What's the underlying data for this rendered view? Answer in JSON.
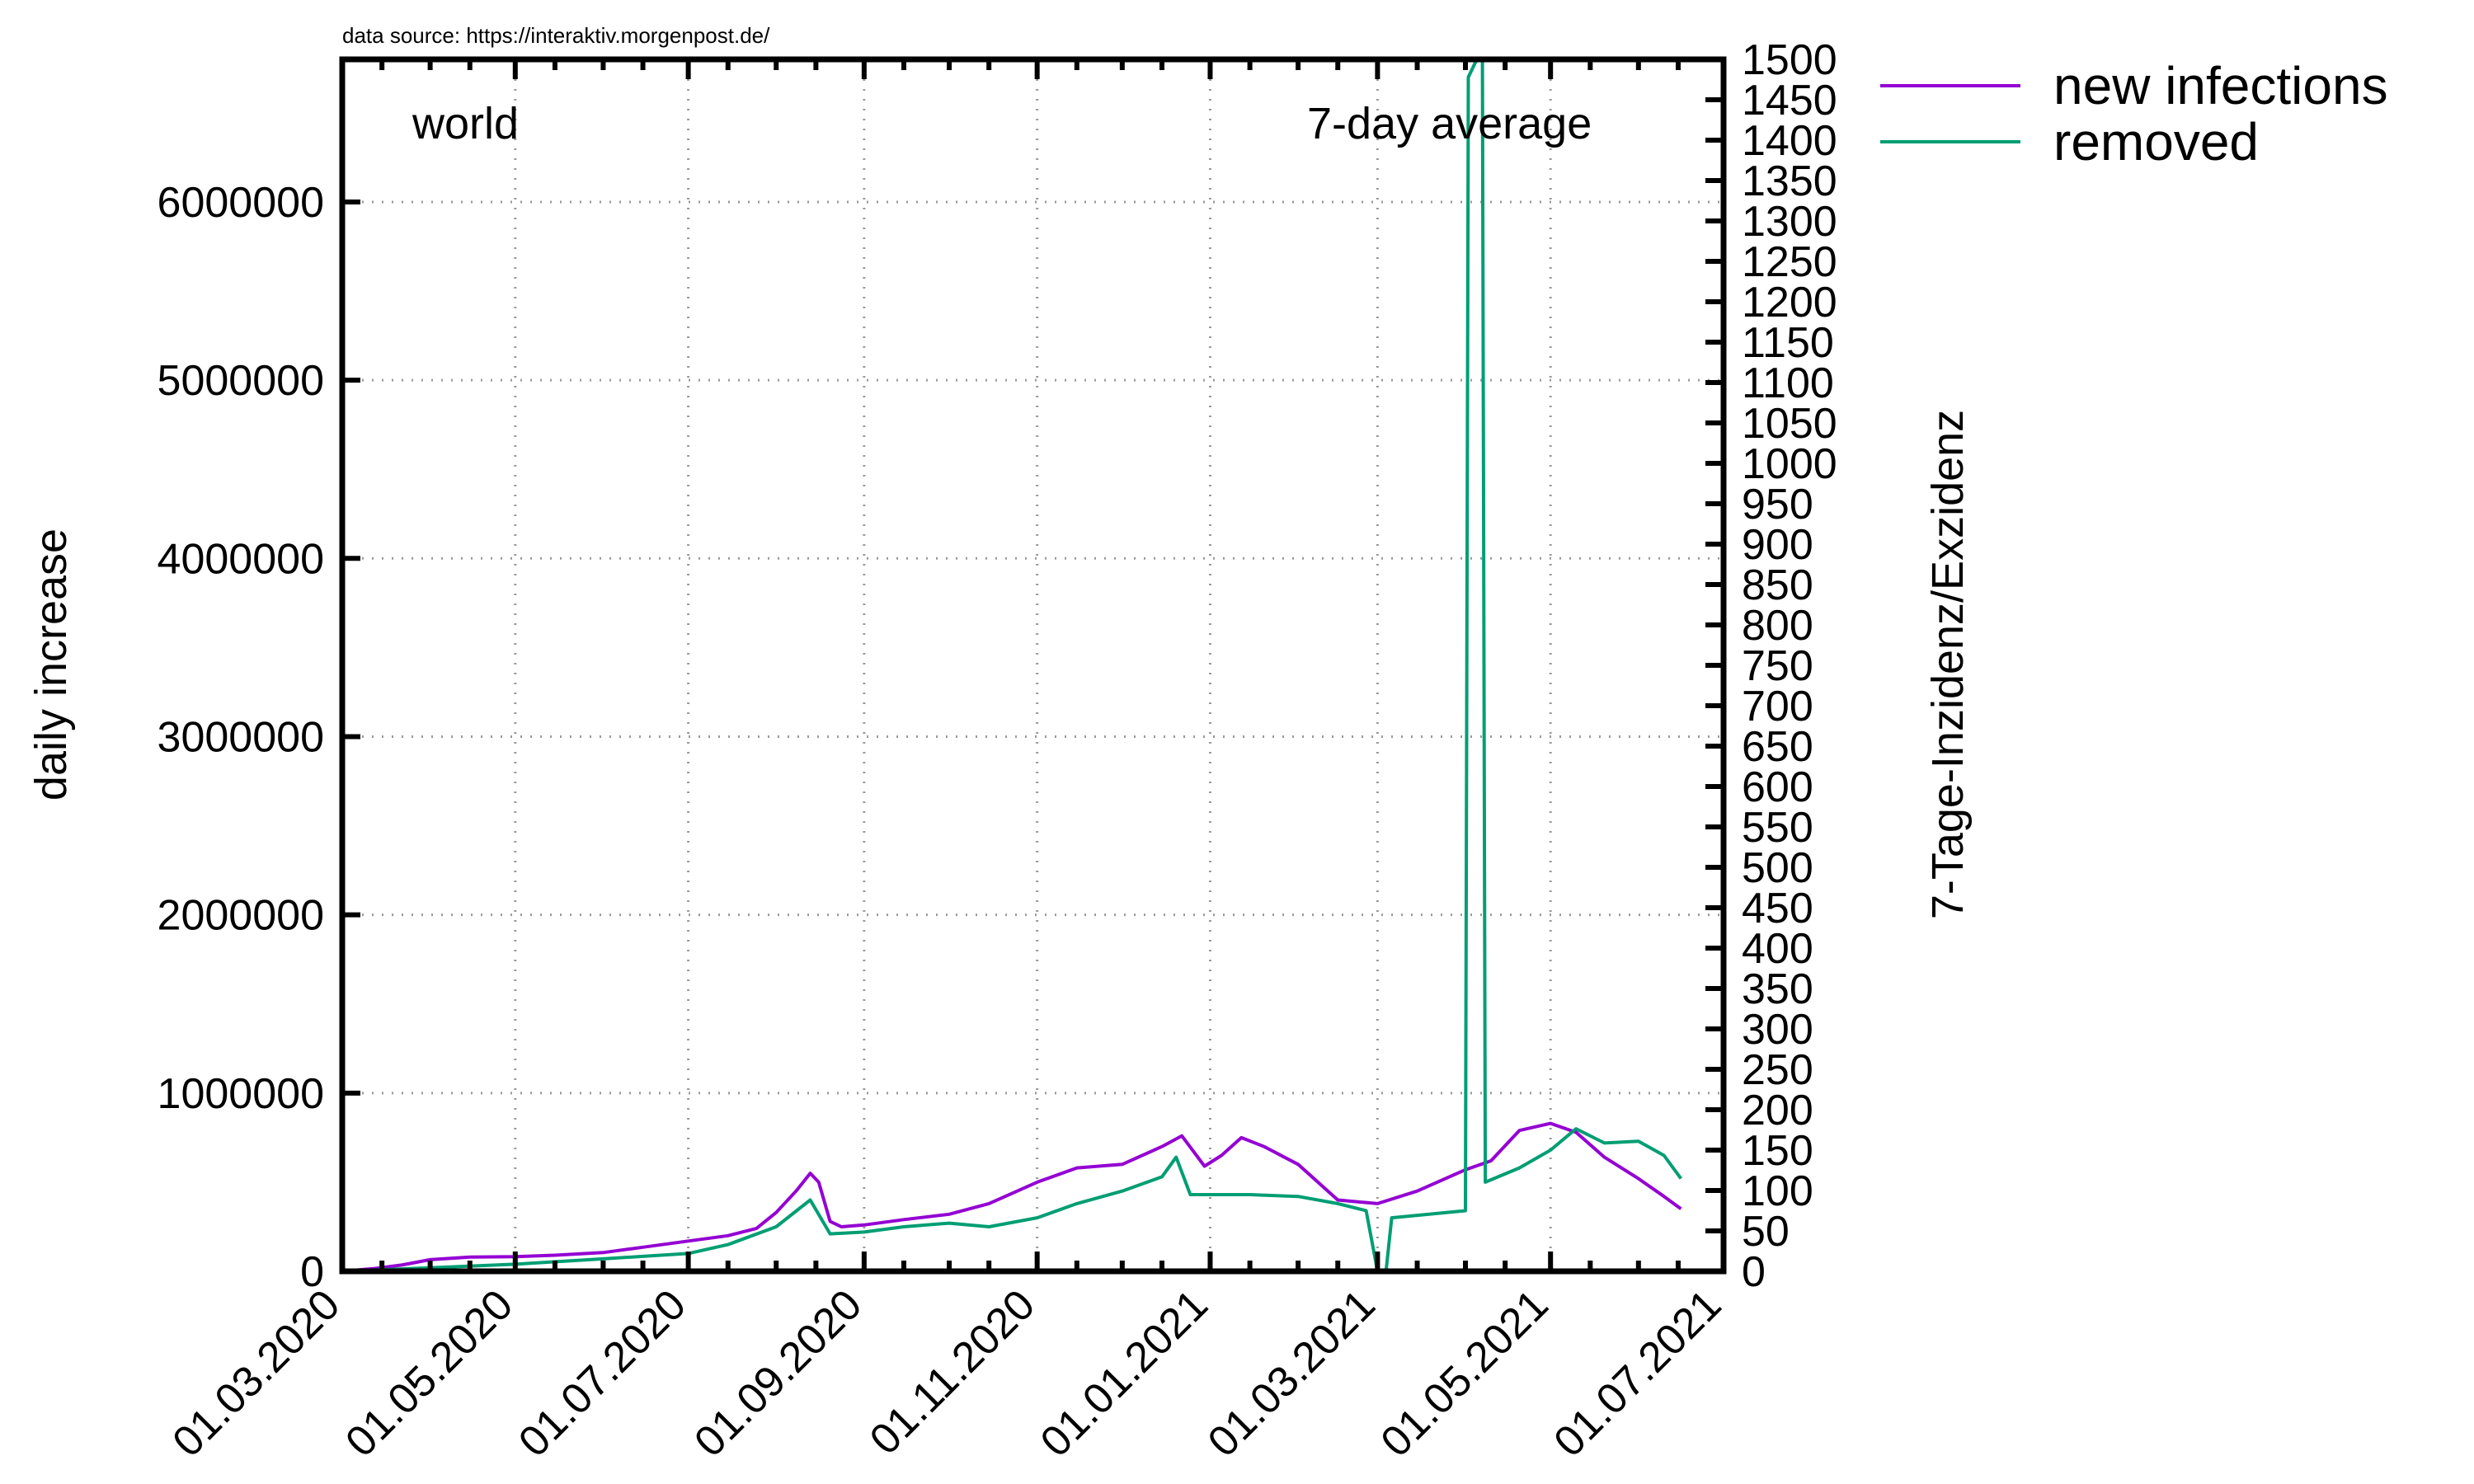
{
  "source_note": "data source: https://interaktiv.morgenpost.de/",
  "chart_data": {
    "type": "line",
    "title": "world",
    "subtitle": "7-day average",
    "ylabel": "daily increase",
    "y2label": "7-Tage-Inzidenz/Exzidenz",
    "x_tick_labels": [
      "01.03.2020",
      "01.05.2020",
      "01.07.2020",
      "01.09.2020",
      "01.11.2020",
      "01.01.2021",
      "01.03.2021",
      "01.05.2021",
      "01.07.2021"
    ],
    "xlim": [
      "2020-03-01",
      "2021-07-01"
    ],
    "ylim": [
      0,
      6800000
    ],
    "y_ticks": [
      0,
      1000000,
      2000000,
      3000000,
      4000000,
      5000000,
      6000000
    ],
    "y_tick_labels": [
      "0",
      "1000000",
      "2000000",
      "3000000",
      "4000000",
      "5000000",
      "6000000"
    ],
    "y2lim": [
      0,
      1500
    ],
    "y2_ticks": [
      0,
      50,
      100,
      150,
      200,
      250,
      300,
      350,
      400,
      450,
      500,
      550,
      600,
      650,
      700,
      750,
      800,
      850,
      900,
      950,
      1000,
      1050,
      1100,
      1150,
      1200,
      1250,
      1300,
      1350,
      1400,
      1450,
      1500
    ],
    "grid": true,
    "legend_position": "outside top-right",
    "series": [
      {
        "name": "new infections",
        "color": "#9400d3",
        "points": [
          [
            "2020-03-01",
            0
          ],
          [
            "2020-03-12",
            15000
          ],
          [
            "2020-03-22",
            35000
          ],
          [
            "2020-04-01",
            65000
          ],
          [
            "2020-04-15",
            80000
          ],
          [
            "2020-05-01",
            82000
          ],
          [
            "2020-05-15",
            90000
          ],
          [
            "2020-06-01",
            105000
          ],
          [
            "2020-06-15",
            135000
          ],
          [
            "2020-07-01",
            170000
          ],
          [
            "2020-07-15",
            200000
          ],
          [
            "2020-07-25",
            240000
          ],
          [
            "2020-08-01",
            330000
          ],
          [
            "2020-08-08",
            450000
          ],
          [
            "2020-08-13",
            550000
          ],
          [
            "2020-08-16",
            500000
          ],
          [
            "2020-08-20",
            280000
          ],
          [
            "2020-08-24",
            250000
          ],
          [
            "2020-09-01",
            260000
          ],
          [
            "2020-09-15",
            290000
          ],
          [
            "2020-10-01",
            320000
          ],
          [
            "2020-10-15",
            380000
          ],
          [
            "2020-11-01",
            500000
          ],
          [
            "2020-11-15",
            580000
          ],
          [
            "2020-12-01",
            600000
          ],
          [
            "2020-12-15",
            700000
          ],
          [
            "2020-12-22",
            760000
          ],
          [
            "2020-12-30",
            590000
          ],
          [
            "2021-01-05",
            650000
          ],
          [
            "2021-01-12",
            750000
          ],
          [
            "2021-01-20",
            700000
          ],
          [
            "2021-02-01",
            600000
          ],
          [
            "2021-02-15",
            400000
          ],
          [
            "2021-03-01",
            380000
          ],
          [
            "2021-03-15",
            450000
          ],
          [
            "2021-04-01",
            570000
          ],
          [
            "2021-04-10",
            620000
          ],
          [
            "2021-04-20",
            790000
          ],
          [
            "2021-05-01",
            830000
          ],
          [
            "2021-05-10",
            780000
          ],
          [
            "2021-05-20",
            640000
          ],
          [
            "2021-06-01",
            520000
          ],
          [
            "2021-06-10",
            420000
          ],
          [
            "2021-06-16",
            350000
          ]
        ]
      },
      {
        "name": "removed",
        "color": "#009e73",
        "points": [
          [
            "2020-03-01",
            0
          ],
          [
            "2020-04-01",
            20000
          ],
          [
            "2020-05-01",
            40000
          ],
          [
            "2020-06-01",
            70000
          ],
          [
            "2020-07-01",
            100000
          ],
          [
            "2020-07-15",
            150000
          ],
          [
            "2020-08-01",
            250000
          ],
          [
            "2020-08-13",
            400000
          ],
          [
            "2020-08-20",
            210000
          ],
          [
            "2020-09-01",
            220000
          ],
          [
            "2020-09-15",
            250000
          ],
          [
            "2020-10-01",
            270000
          ],
          [
            "2020-10-15",
            250000
          ],
          [
            "2020-11-01",
            300000
          ],
          [
            "2020-11-15",
            380000
          ],
          [
            "2020-12-01",
            450000
          ],
          [
            "2020-12-15",
            530000
          ],
          [
            "2020-12-20",
            640000
          ],
          [
            "2020-12-25",
            430000
          ],
          [
            "2021-01-15",
            430000
          ],
          [
            "2021-02-01",
            420000
          ],
          [
            "2021-02-15",
            380000
          ],
          [
            "2021-02-25",
            340000
          ],
          [
            "2021-03-01",
            0
          ],
          [
            "2021-03-04",
            0
          ],
          [
            "2021-03-06",
            300000
          ],
          [
            "2021-04-01",
            340000
          ],
          [
            "2021-04-02",
            6700000
          ],
          [
            "2021-04-05",
            6800000
          ],
          [
            "2021-04-07",
            6800000
          ],
          [
            "2021-04-08",
            500000
          ],
          [
            "2021-04-20",
            580000
          ],
          [
            "2021-05-01",
            680000
          ],
          [
            "2021-05-10",
            800000
          ],
          [
            "2021-05-20",
            720000
          ],
          [
            "2021-06-01",
            730000
          ],
          [
            "2021-06-10",
            650000
          ],
          [
            "2021-06-16",
            520000
          ]
        ]
      }
    ]
  }
}
